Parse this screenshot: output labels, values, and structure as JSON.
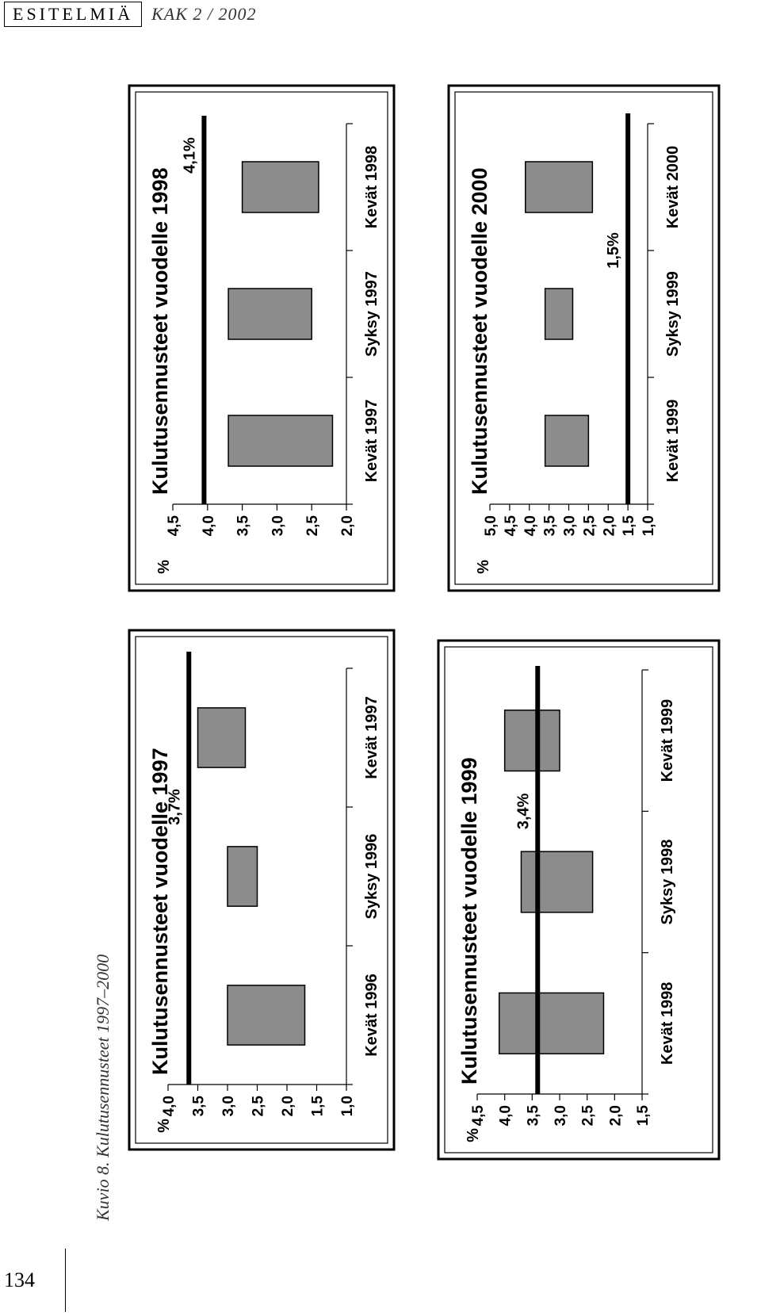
{
  "header": {
    "section": "ESITELMIÄ",
    "journal": "KAK 2 / 2002"
  },
  "caption": "Kuvio 8. Kulutusennusteet 1997–2000",
  "page_number": "134",
  "colors": {
    "bar_fill": "#8c8c8c",
    "line": "#000000"
  },
  "chart_data": [
    {
      "type": "floating-bar",
      "title": "Kulutusennusteet vuodelle 1997",
      "unit_label": "%",
      "categories": [
        "Kevät 1996",
        "Syksy 1996",
        "Kevät 1997"
      ],
      "ranges": [
        [
          1.7,
          3.0
        ],
        [
          2.5,
          3.0
        ],
        [
          2.7,
          3.5
        ]
      ],
      "reference": {
        "value": 3.65,
        "label": "3,7%"
      },
      "ylim": [
        1.0,
        4.0
      ],
      "yticks": [
        "1,0",
        "1,5",
        "2,0",
        "2,5",
        "3,0",
        "3,5",
        "4,0"
      ],
      "ytick_values": [
        1.0,
        1.5,
        2.0,
        2.5,
        3.0,
        3.5,
        4.0
      ]
    },
    {
      "type": "floating-bar",
      "title": "Kulutusennusteet vuodelle 1998",
      "unit_label": "%",
      "categories": [
        "Kevät 1997",
        "Syksy 1997",
        "Kevät 1998"
      ],
      "ranges": [
        [
          2.2,
          3.7
        ],
        [
          2.5,
          3.7
        ],
        [
          2.4,
          3.5
        ]
      ],
      "reference": {
        "value": 4.05,
        "label": "4,1%"
      },
      "ylim": [
        2.0,
        4.5
      ],
      "yticks": [
        "2,0",
        "2,5",
        "3,0",
        "3,5",
        "4,0",
        "4,5"
      ],
      "ytick_values": [
        2.0,
        2.5,
        3.0,
        3.5,
        4.0,
        4.5
      ]
    },
    {
      "type": "floating-bar",
      "title": "Kulutusennusteet vuodelle 1999",
      "unit_label": "%",
      "categories": [
        "Kevät 1998",
        "Syksy 1998",
        "Kevät 1999"
      ],
      "ranges": [
        [
          2.2,
          4.1
        ],
        [
          2.4,
          3.7
        ],
        [
          3.0,
          4.0
        ]
      ],
      "reference": {
        "value": 3.4,
        "label": "3,4%"
      },
      "ylim": [
        1.5,
        4.5
      ],
      "yticks": [
        "1,5",
        "2,0",
        "2,5",
        "3,0",
        "3,5",
        "4,0",
        "4,5"
      ],
      "ytick_values": [
        1.5,
        2.0,
        2.5,
        3.0,
        3.5,
        4.0,
        4.5
      ]
    },
    {
      "type": "floating-bar",
      "title": "Kulutusennusteet vuodelle 2000",
      "unit_label": "%",
      "categories": [
        "Kevät 1999",
        "Syksy 1999",
        "Kevät 2000"
      ],
      "ranges": [
        [
          2.5,
          3.6
        ],
        [
          2.9,
          3.6
        ],
        [
          2.4,
          4.1
        ]
      ],
      "reference": {
        "value": 1.5,
        "label": "1,5%"
      },
      "ylim": [
        1.0,
        5.0
      ],
      "yticks": [
        "1,0",
        "1,5",
        "2,0",
        "2,5",
        "3,0",
        "3,5",
        "4,0",
        "4,5",
        "5,0"
      ],
      "ytick_values": [
        1.0,
        1.5,
        2.0,
        2.5,
        3.0,
        3.5,
        4.0,
        4.5,
        5.0
      ]
    }
  ]
}
